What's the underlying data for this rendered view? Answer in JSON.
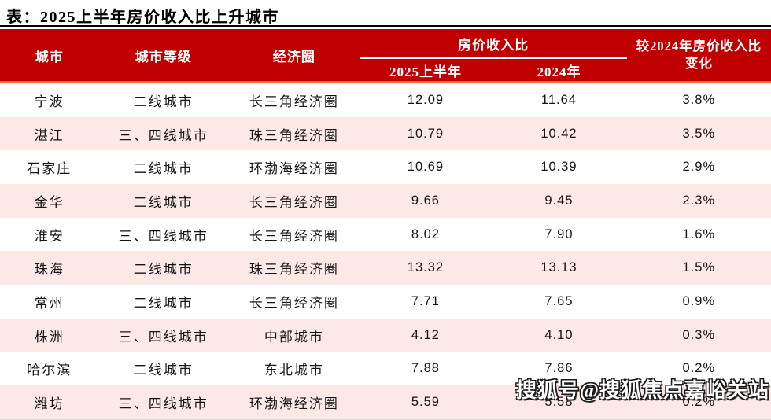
{
  "title": "表：2025上半年房价收入比上升城市",
  "header": {
    "city": "城市",
    "tier": "城市等级",
    "region": "经济圈",
    "ratio_group": "房价收入比",
    "h1_2025": "2025上半年",
    "y2024": "2024年",
    "change": "较2024年房价收入比变化"
  },
  "chart_data": {
    "type": "table",
    "title": "表：2025上半年房价收入比上升城市",
    "columns": [
      "城市",
      "城市等级",
      "经济圈",
      "房价收入比 2025上半年",
      "房价收入比 2024年",
      "较2024年房价收入比变化"
    ],
    "rows": [
      [
        "宁波",
        "二线城市",
        "长三角经济圈",
        "12.09",
        "11.64",
        "3.8%"
      ],
      [
        "湛江",
        "三、四线城市",
        "珠三角经济圈",
        "10.79",
        "10.42",
        "3.5%"
      ],
      [
        "石家庄",
        "二线城市",
        "环渤海经济圈",
        "10.69",
        "10.39",
        "2.9%"
      ],
      [
        "金华",
        "二线城市",
        "长三角经济圈",
        "9.66",
        "9.45",
        "2.3%"
      ],
      [
        "淮安",
        "三、四线城市",
        "长三角经济圈",
        "8.02",
        "7.90",
        "1.6%"
      ],
      [
        "珠海",
        "二线城市",
        "珠三角经济圈",
        "13.32",
        "13.13",
        "1.5%"
      ],
      [
        "常州",
        "二线城市",
        "长三角经济圈",
        "7.71",
        "7.65",
        "0.9%"
      ],
      [
        "株洲",
        "三、四线城市",
        "中部城市",
        "4.12",
        "4.10",
        "0.3%"
      ],
      [
        "哈尔滨",
        "二线城市",
        "东北城市",
        "7.88",
        "7.86",
        "0.2%"
      ],
      [
        "潍坊",
        "三、四线城市",
        "环渤海经济圈",
        "5.59",
        "5.58",
        "0.2%"
      ]
    ]
  },
  "watermark": "搜狐号@搜狐焦点嘉峪关站",
  "colors": {
    "header_bg": "#C00000",
    "header_text": "#FFFFFF",
    "accent_line": "#E97132",
    "row_alt_bg": "#FCE9E5",
    "top_border": "#000000"
  }
}
